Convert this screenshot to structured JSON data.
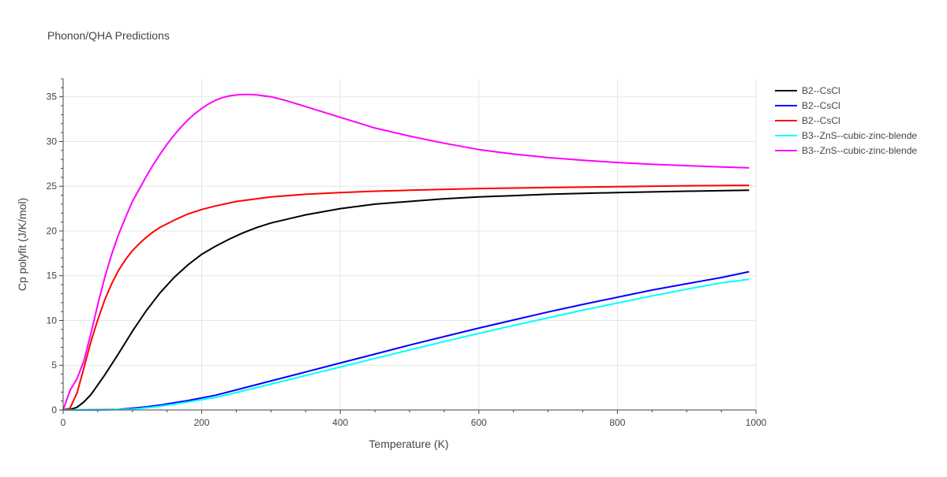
{
  "chart_data": {
    "type": "line",
    "title": "Phonon/QHA Predictions",
    "xlabel": "Temperature (K)",
    "ylabel": "Cp polyfit (J/K/mol)",
    "xlim": [
      0,
      1000
    ],
    "ylim": [
      0,
      37
    ],
    "xticks": [
      0,
      200,
      400,
      600,
      800,
      1000
    ],
    "yticks": [
      0,
      5,
      10,
      15,
      20,
      25,
      30,
      35
    ],
    "grid": true,
    "legend_position": "top-right, outside plot",
    "series": [
      {
        "name": "B2--CsCl",
        "color": "#000000",
        "x": [
          0,
          10,
          20,
          30,
          40,
          50,
          60,
          80,
          100,
          120,
          140,
          160,
          180,
          200,
          220,
          240,
          260,
          280,
          300,
          350,
          400,
          450,
          500,
          550,
          600,
          700,
          800,
          900,
          990
        ],
        "y": [
          0,
          0.05,
          0.3,
          0.9,
          1.7,
          2.8,
          3.9,
          6.3,
          8.8,
          11.1,
          13.1,
          14.8,
          16.2,
          17.4,
          18.3,
          19.1,
          19.8,
          20.4,
          20.9,
          21.8,
          22.5,
          23.0,
          23.3,
          23.6,
          23.8,
          24.1,
          24.3,
          24.45,
          24.55
        ]
      },
      {
        "name": "B2--CsCl",
        "color": "#0000ff",
        "x": [
          0,
          50,
          80,
          100,
          120,
          140,
          160,
          180,
          200,
          220,
          250,
          300,
          350,
          400,
          450,
          500,
          550,
          600,
          650,
          700,
          750,
          800,
          850,
          900,
          950,
          990
        ],
        "y": [
          0,
          0.02,
          0.07,
          0.2,
          0.35,
          0.55,
          0.8,
          1.05,
          1.35,
          1.65,
          2.25,
          3.25,
          4.25,
          5.25,
          6.25,
          7.25,
          8.2,
          9.15,
          10.05,
          10.95,
          11.8,
          12.6,
          13.4,
          14.1,
          14.8,
          15.45
        ]
      },
      {
        "name": "B2--CsCl",
        "color": "#ff0000",
        "x": [
          0,
          10,
          20,
          30,
          40,
          50,
          60,
          70,
          80,
          90,
          100,
          110,
          120,
          130,
          140,
          150,
          160,
          180,
          200,
          220,
          250,
          300,
          350,
          400,
          450,
          500,
          600,
          700,
          800,
          900,
          990
        ],
        "y": [
          0,
          0.2,
          1.9,
          4.7,
          7.6,
          10.1,
          12.3,
          14.1,
          15.6,
          16.8,
          17.8,
          18.6,
          19.3,
          19.9,
          20.4,
          20.8,
          21.2,
          21.9,
          22.4,
          22.8,
          23.3,
          23.8,
          24.1,
          24.3,
          24.45,
          24.55,
          24.75,
          24.85,
          24.95,
          25.05,
          25.1
        ]
      },
      {
        "name": "B3--ZnS--cubic-zinc-blende",
        "color": "#00ffff",
        "x": [
          0,
          50,
          80,
          100,
          120,
          140,
          160,
          180,
          200,
          220,
          250,
          300,
          350,
          400,
          450,
          500,
          550,
          600,
          650,
          700,
          750,
          800,
          850,
          900,
          950,
          990
        ],
        "y": [
          0,
          0.01,
          0.04,
          0.1,
          0.25,
          0.42,
          0.65,
          0.9,
          1.15,
          1.4,
          1.95,
          2.9,
          3.85,
          4.8,
          5.75,
          6.7,
          7.65,
          8.55,
          9.45,
          10.3,
          11.15,
          11.95,
          12.75,
          13.5,
          14.2,
          14.6
        ]
      },
      {
        "name": "B3--ZnS--cubic-zinc-blende",
        "color": "#ff00ff",
        "x": [
          0,
          10,
          20,
          30,
          40,
          50,
          60,
          70,
          80,
          90,
          100,
          110,
          120,
          130,
          140,
          150,
          160,
          170,
          180,
          190,
          200,
          210,
          220,
          230,
          240,
          250,
          260,
          270,
          280,
          290,
          300,
          320,
          350,
          400,
          450,
          500,
          550,
          600,
          650,
          700,
          750,
          800,
          850,
          900,
          950,
          990
        ],
        "y": [
          0,
          2.2,
          3.5,
          5.5,
          8.5,
          11.8,
          14.8,
          17.4,
          19.6,
          21.5,
          23.3,
          24.7,
          26.1,
          27.4,
          28.6,
          29.7,
          30.7,
          31.6,
          32.4,
          33.1,
          33.7,
          34.2,
          34.6,
          34.9,
          35.1,
          35.2,
          35.25,
          35.25,
          35.2,
          35.1,
          35.0,
          34.6,
          33.9,
          32.7,
          31.5,
          30.6,
          29.8,
          29.1,
          28.6,
          28.2,
          27.9,
          27.65,
          27.45,
          27.3,
          27.15,
          27.05
        ]
      }
    ]
  }
}
